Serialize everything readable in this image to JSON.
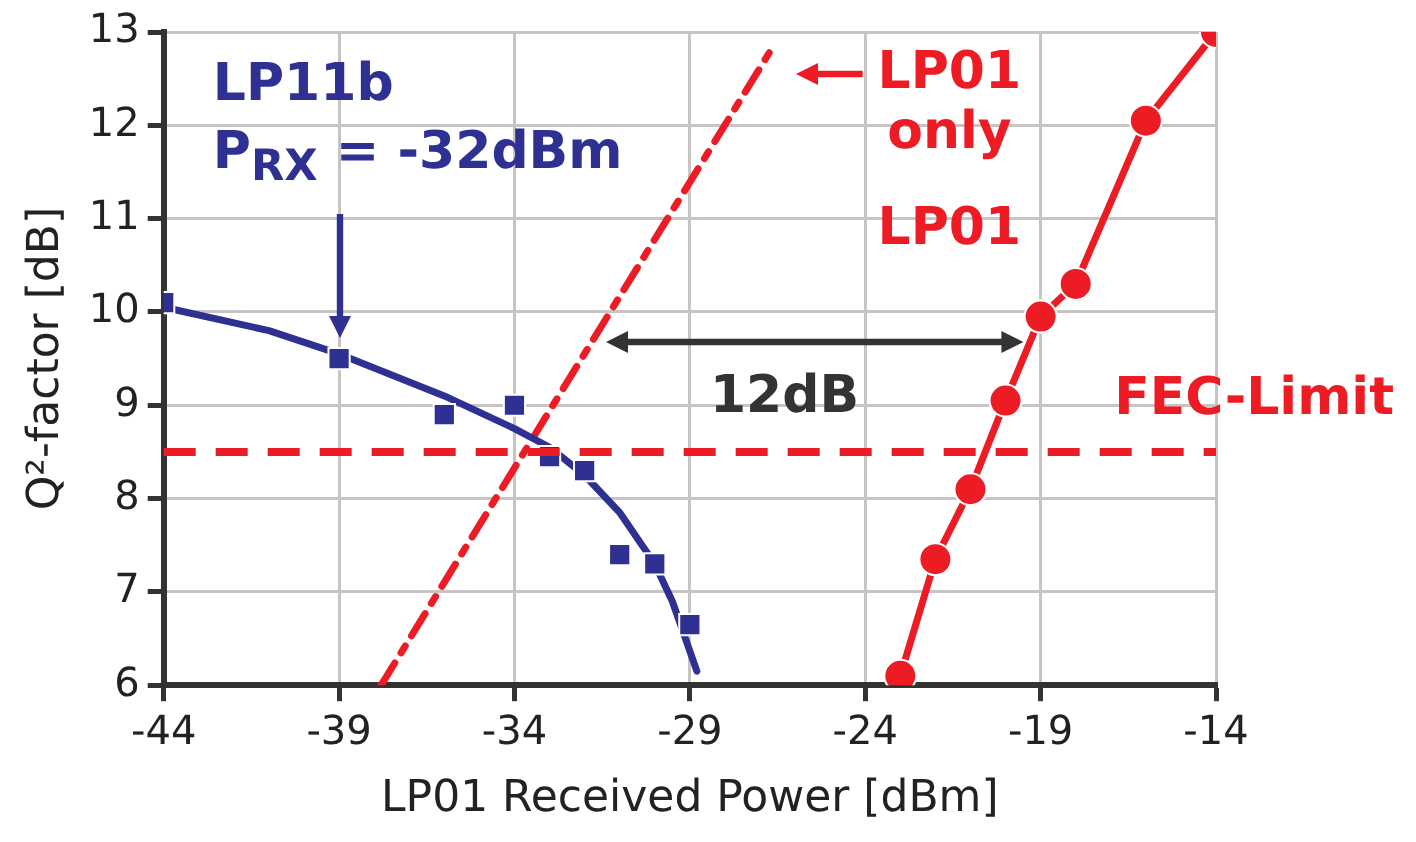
{
  "chart_data": {
    "type": "scatter",
    "xlabel": "LP01 Received Power [dBm]",
    "ylabel": "Q²-factor [dB]",
    "xlim": [
      -44,
      -14
    ],
    "xticks": [
      -44,
      -39,
      -34,
      -29,
      -24,
      -19,
      -14
    ],
    "ylim": [
      6,
      13
    ],
    "yticks": [
      6,
      7,
      8,
      9,
      10,
      11,
      12,
      13
    ],
    "grid": true,
    "legend": false,
    "series": [
      {
        "name": "LP11b",
        "type": "scatter",
        "marker": "square",
        "color": "#2e3192",
        "x": [
          -44,
          -39,
          -36,
          -34,
          -33,
          -32,
          -31,
          -30,
          -29
        ],
        "values": [
          10.1,
          9.5,
          8.9,
          9.0,
          8.45,
          8.3,
          7.4,
          7.3,
          6.65
        ]
      },
      {
        "type": "line",
        "marker": "none",
        "color": "#2e3192",
        "x": [
          -44,
          -41,
          -39,
          -36,
          -34,
          -33,
          -32,
          -31,
          -30,
          -29.5,
          -28.8
        ],
        "values": [
          10.05,
          9.8,
          9.55,
          9.1,
          8.75,
          8.55,
          8.25,
          7.85,
          7.3,
          6.9,
          6.15
        ]
      },
      {
        "type": "line",
        "marker": "none",
        "line_style": "dashed",
        "color": "#ed1c24",
        "x": [
          -37.8,
          -26.7
        ],
        "values": [
          6.0,
          12.8
        ]
      },
      {
        "name": "LP01",
        "type": "line",
        "marker": "circle",
        "color": "#ed1c24",
        "x": [
          -23,
          -22,
          -21,
          -20,
          -19,
          -18,
          -16,
          -14
        ],
        "values": [
          6.1,
          7.35,
          8.1,
          9.05,
          9.95,
          10.3,
          12.05,
          13.0
        ]
      }
    ],
    "ref_lines": [
      {
        "axis": "y",
        "value": 8.5,
        "label": "FEC-Limit",
        "color": "#ed1c24",
        "line_style": "dashed"
      }
    ],
    "annotations": [
      "P$_{RX}$ = -32dBm",
      "12dB",
      "LP01 only"
    ]
  }
}
